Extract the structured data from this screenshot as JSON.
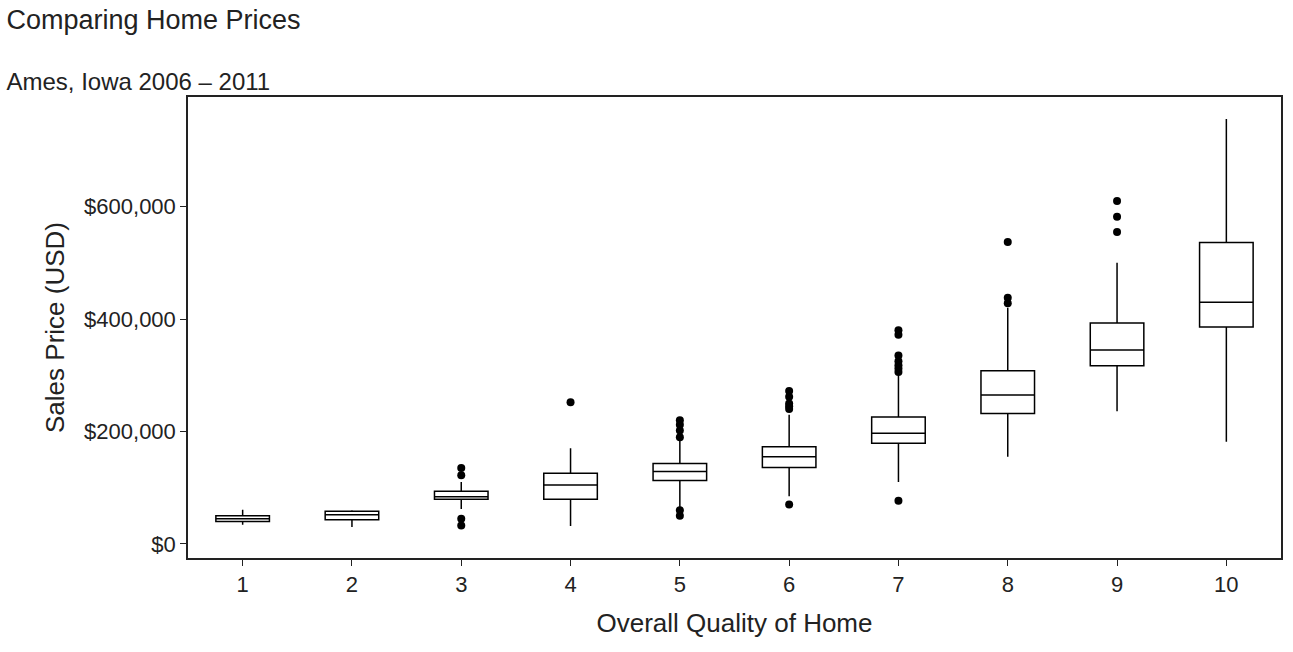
{
  "chart_data": {
    "type": "box",
    "title": "Comparing Home Prices",
    "subtitle": "Ames, Iowa 2006 – 2011",
    "x_label": "Overall Quality of Home",
    "y_label": "Sales Price (USD)",
    "categories": [
      "1",
      "2",
      "3",
      "4",
      "5",
      "6",
      "7",
      "8",
      "9",
      "10"
    ],
    "lower_whisker": [
      34000,
      30000,
      62000,
      32000,
      65000,
      85000,
      110000,
      155000,
      236000,
      182000
    ],
    "q1": [
      40000,
      43000,
      79600,
      79600,
      113000,
      136000,
      179000,
      232000,
      317000,
      386000
    ],
    "median": [
      45000,
      52000,
      84000,
      105000,
      129000,
      155000,
      197000,
      265000,
      345000,
      430000
    ],
    "q3": [
      50000,
      58000,
      93800,
      125700,
      143000,
      173000,
      226000,
      308000,
      393000,
      536000
    ],
    "upper_whisker": [
      61000,
      60000,
      110000,
      170000,
      185000,
      230000,
      300000,
      420000,
      500000,
      756000
    ],
    "outliers": [
      [],
      [],
      [
        135000,
        122000,
        45000,
        33000
      ],
      [
        252000
      ],
      [
        220000,
        212000,
        202000,
        190000,
        60000,
        50000
      ],
      [
        272000,
        262000,
        250000,
        245000,
        240000,
        70000
      ],
      [
        380000,
        372000,
        335000,
        325000,
        318000,
        312000,
        306000,
        77000
      ],
      [
        537000,
        438000,
        428000
      ],
      [
        610000,
        582000,
        555000
      ],
      []
    ],
    "color": "#000000",
    "ylim": [
      -25000,
      795000
    ],
    "yticks": [
      {
        "value": 0,
        "label": "$0"
      },
      {
        "value": 200000,
        "label": "$200,000"
      },
      {
        "value": 400000,
        "label": "$400,000"
      },
      {
        "value": 600000,
        "label": "$600,000"
      }
    ],
    "grid": false
  }
}
